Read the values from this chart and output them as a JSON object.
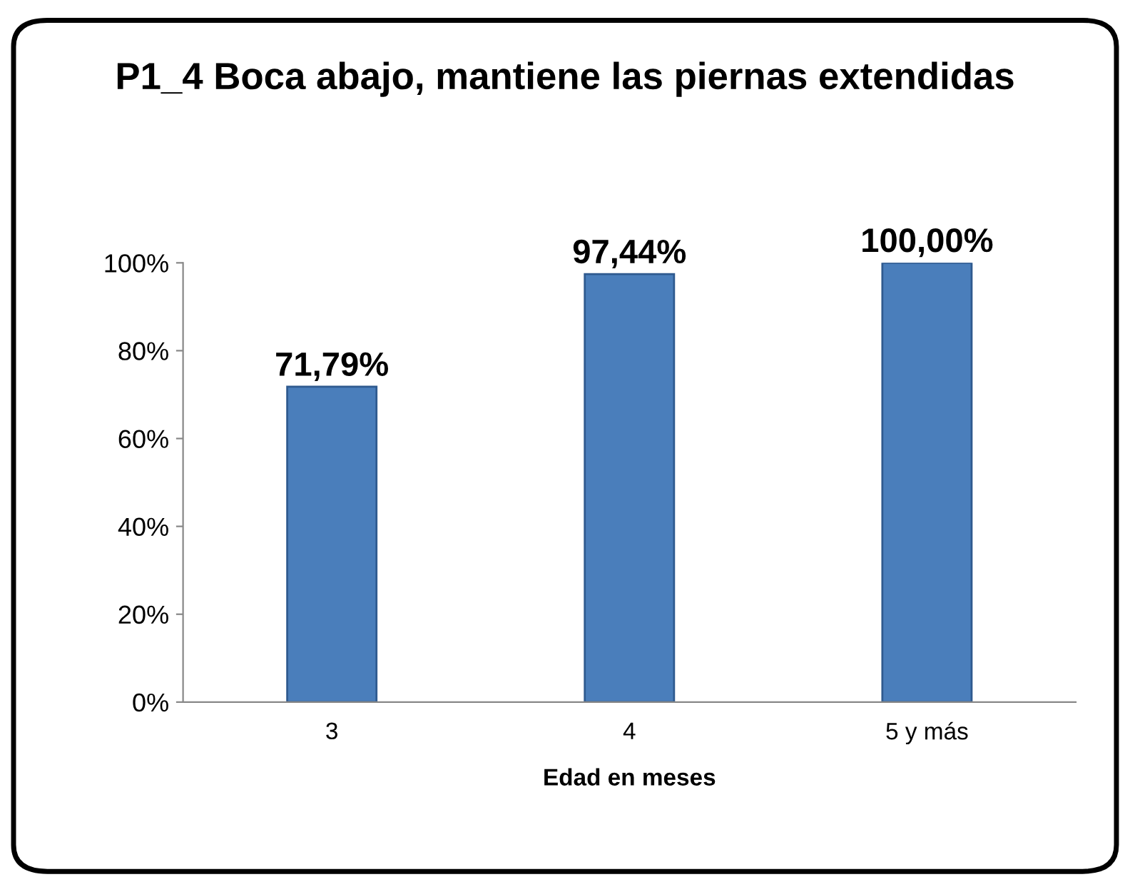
{
  "chart_data": {
    "type": "bar",
    "title": "P1_4 Boca abajo, mantiene las piernas extendidas",
    "xlabel": "Edad en meses",
    "categories": [
      "3",
      "4",
      "5 y más"
    ],
    "values": [
      71.79,
      97.44,
      100.0
    ],
    "value_labels": [
      "71,79%",
      "97,44%",
      "100,00%"
    ],
    "color": "#4a7ebb",
    "ylim": [
      0,
      100
    ],
    "yticks": [
      {
        "value": 0,
        "label": "0%"
      },
      {
        "value": 20,
        "label": "20%"
      },
      {
        "value": 40,
        "label": "40%"
      },
      {
        "value": 60,
        "label": "60%"
      },
      {
        "value": 80,
        "label": "80%"
      },
      {
        "value": 100,
        "label": "100%"
      }
    ],
    "grid": false,
    "legend": false
  }
}
